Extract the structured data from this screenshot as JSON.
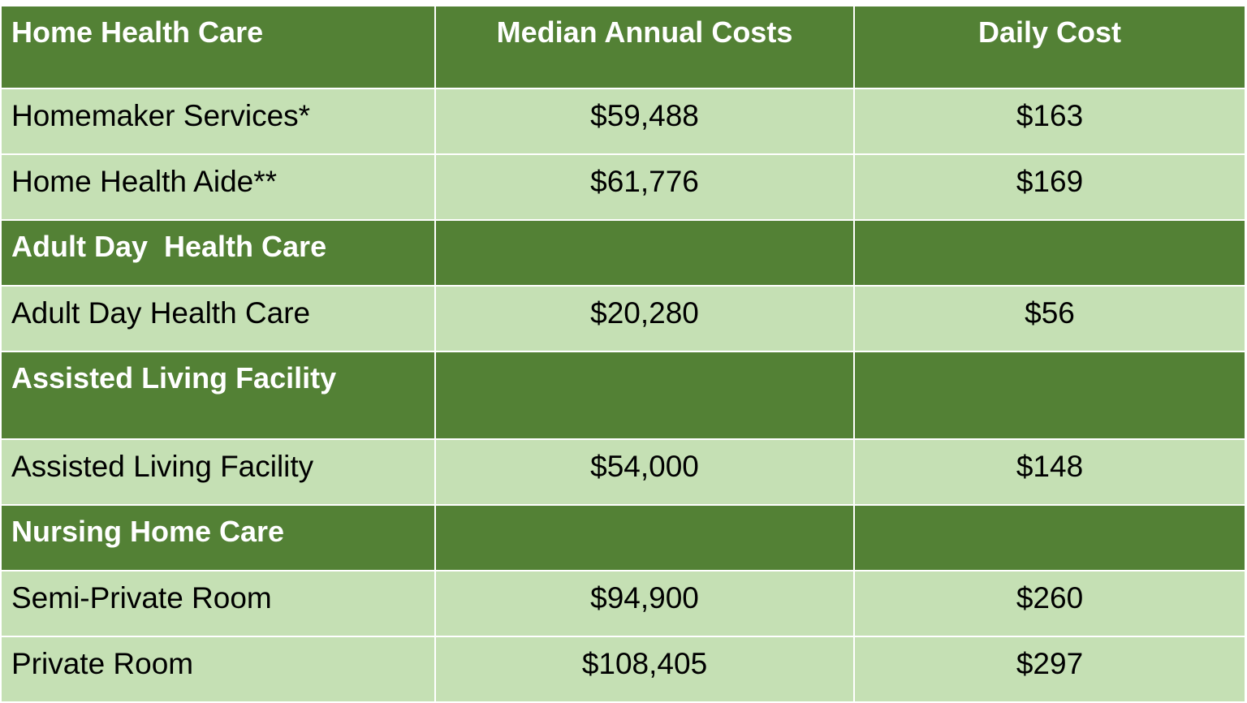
{
  "colors": {
    "header_bg": "#538135",
    "row_bg": "#c5e0b4",
    "header_text": "#ffffff",
    "row_text": "#000000"
  },
  "table": {
    "headers": [
      "Home Health Care",
      "Median Annual Costs",
      "Daily Cost"
    ],
    "rows": [
      {
        "label": "Homemaker Services*",
        "annual": "$59,488",
        "daily": "$163"
      },
      {
        "label": "Home Health Aide**",
        "annual": "$61,776",
        "daily": "$169"
      },
      {
        "section": "Adult Day  Health Care"
      },
      {
        "label": "Adult Day Health Care",
        "annual": "$20,280",
        "daily": "$56"
      },
      {
        "section": "Assisted Living Facility"
      },
      {
        "label": "Assisted Living Facility",
        "annual": "$54,000",
        "daily": "$148"
      },
      {
        "section": "Nursing Home Care"
      },
      {
        "label": "Semi-Private Room",
        "annual": "$94,900",
        "daily": "$260"
      },
      {
        "label": "Private Room",
        "annual": "$108,405",
        "daily": "$297"
      }
    ]
  }
}
